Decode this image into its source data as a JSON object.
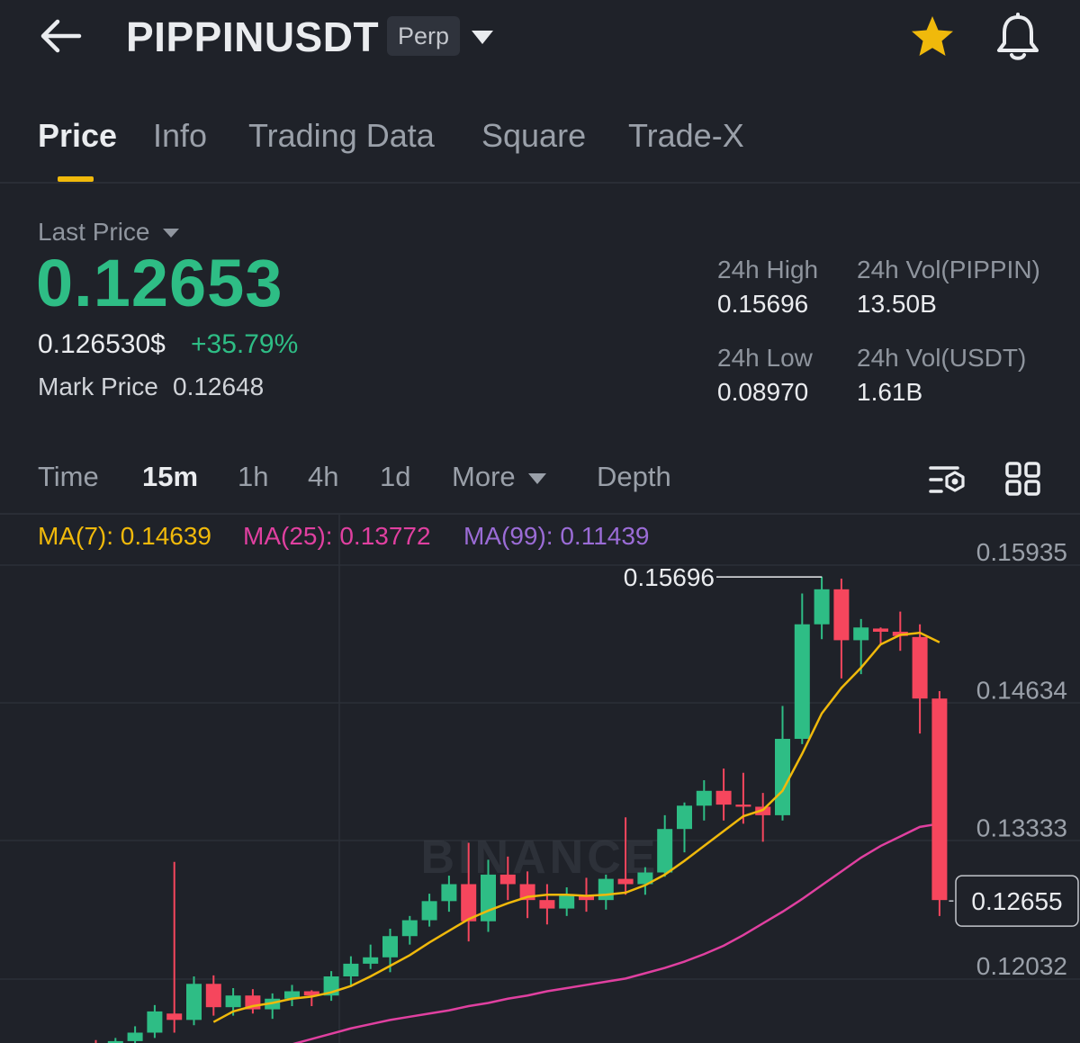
{
  "header": {
    "symbol": "PIPPINUSDT",
    "badge": "Perp",
    "icons": [
      "back-arrow-icon",
      "chevron-down-icon",
      "star-icon",
      "bell-icon"
    ],
    "star_color": "#f0b90b"
  },
  "tabs": [
    {
      "label": "Price",
      "active": true
    },
    {
      "label": "Info",
      "active": false
    },
    {
      "label": "Trading Data",
      "active": false
    },
    {
      "label": "Square",
      "active": false
    },
    {
      "label": "Trade-X",
      "active": false
    }
  ],
  "price": {
    "last_price_label": "Last Price",
    "last_price": "0.12653",
    "usd_price": "0.126530$",
    "change_pct": "+35.79%",
    "mark_label": "Mark Price",
    "mark_value": "0.12648",
    "up_color": "#2ebd85"
  },
  "stats": {
    "high_label": "24h High",
    "high_value": "0.15696",
    "low_label": "24h Low",
    "low_value": "0.08970",
    "vol_base_label": "24h Vol(PIPPIN)",
    "vol_base_value": "13.50B",
    "vol_quote_label": "24h Vol(USDT)",
    "vol_quote_value": "1.61B"
  },
  "intervals": [
    {
      "label": "Time",
      "active": false
    },
    {
      "label": "15m",
      "active": true
    },
    {
      "label": "1h",
      "active": false
    },
    {
      "label": "4h",
      "active": false
    },
    {
      "label": "1d",
      "active": false
    },
    {
      "label": "More",
      "active": false
    },
    {
      "label": "Depth",
      "active": false
    }
  ],
  "toolbar_icons": [
    "chart-settings-icon",
    "grid-layout-icon"
  ],
  "ma": {
    "ma7": "MA(7): 0.14639",
    "ma7_color": "#f0b90b",
    "ma25": "MA(25): 0.13772",
    "ma25_color": "#e040a0",
    "ma99": "MA(99): 0.11439",
    "ma99_color": "#9b6cd6"
  },
  "chart_data": {
    "type": "candlestick",
    "interval": "15m",
    "y_ticks": [
      "0.15935",
      "0.14634",
      "0.13333",
      "0.12032"
    ],
    "y_range": [
      0.1113,
      0.1636
    ],
    "high_marker": "0.15696",
    "current_price_tag": "0.12655",
    "watermark": "BINANCE",
    "up_color": "#2ebd85",
    "down_color": "#f6465d",
    "candles": [
      {
        "o": 0.1127,
        "h": 0.1133,
        "l": 0.112,
        "c": 0.1122
      },
      {
        "o": 0.1123,
        "h": 0.1135,
        "l": 0.1115,
        "c": 0.1132
      },
      {
        "o": 0.1132,
        "h": 0.1146,
        "l": 0.1126,
        "c": 0.114
      },
      {
        "o": 0.114,
        "h": 0.1166,
        "l": 0.1135,
        "c": 0.116
      },
      {
        "o": 0.1158,
        "h": 0.1301,
        "l": 0.114,
        "c": 0.1152
      },
      {
        "o": 0.1152,
        "h": 0.1193,
        "l": 0.1147,
        "c": 0.1186
      },
      {
        "o": 0.1186,
        "h": 0.1194,
        "l": 0.1156,
        "c": 0.1164
      },
      {
        "o": 0.1164,
        "h": 0.1182,
        "l": 0.1156,
        "c": 0.1175
      },
      {
        "o": 0.1175,
        "h": 0.1181,
        "l": 0.1158,
        "c": 0.1162
      },
      {
        "o": 0.1162,
        "h": 0.1177,
        "l": 0.1153,
        "c": 0.1172
      },
      {
        "o": 0.1172,
        "h": 0.1185,
        "l": 0.1165,
        "c": 0.1179
      },
      {
        "o": 0.1179,
        "h": 0.118,
        "l": 0.1165,
        "c": 0.1175
      },
      {
        "o": 0.1175,
        "h": 0.1198,
        "l": 0.117,
        "c": 0.1193
      },
      {
        "o": 0.1193,
        "h": 0.1212,
        "l": 0.1183,
        "c": 0.1205
      },
      {
        "o": 0.1205,
        "h": 0.1223,
        "l": 0.12,
        "c": 0.1211
      },
      {
        "o": 0.1211,
        "h": 0.1238,
        "l": 0.1197,
        "c": 0.1231
      },
      {
        "o": 0.1231,
        "h": 0.125,
        "l": 0.1223,
        "c": 0.1246
      },
      {
        "o": 0.1246,
        "h": 0.1271,
        "l": 0.124,
        "c": 0.1264
      },
      {
        "o": 0.1264,
        "h": 0.1288,
        "l": 0.1254,
        "c": 0.128
      },
      {
        "o": 0.128,
        "h": 0.1319,
        "l": 0.1226,
        "c": 0.1245
      },
      {
        "o": 0.1245,
        "h": 0.1303,
        "l": 0.1235,
        "c": 0.1289
      },
      {
        "o": 0.1289,
        "h": 0.1306,
        "l": 0.1265,
        "c": 0.128
      },
      {
        "o": 0.128,
        "h": 0.1292,
        "l": 0.1248,
        "c": 0.1265
      },
      {
        "o": 0.1265,
        "h": 0.128,
        "l": 0.1242,
        "c": 0.1257
      },
      {
        "o": 0.1257,
        "h": 0.1277,
        "l": 0.125,
        "c": 0.1269
      },
      {
        "o": 0.1269,
        "h": 0.1286,
        "l": 0.1254,
        "c": 0.1265
      },
      {
        "o": 0.1265,
        "h": 0.1289,
        "l": 0.1256,
        "c": 0.1285
      },
      {
        "o": 0.1285,
        "h": 0.1343,
        "l": 0.127,
        "c": 0.128
      },
      {
        "o": 0.128,
        "h": 0.1296,
        "l": 0.127,
        "c": 0.1291
      },
      {
        "o": 0.1291,
        "h": 0.1345,
        "l": 0.1287,
        "c": 0.1332
      },
      {
        "o": 0.1332,
        "h": 0.1357,
        "l": 0.131,
        "c": 0.1354
      },
      {
        "o": 0.1354,
        "h": 0.1378,
        "l": 0.134,
        "c": 0.1368
      },
      {
        "o": 0.1368,
        "h": 0.1389,
        "l": 0.134,
        "c": 0.1355
      },
      {
        "o": 0.1355,
        "h": 0.1385,
        "l": 0.1337,
        "c": 0.1353
      },
      {
        "o": 0.1353,
        "h": 0.1366,
        "l": 0.132,
        "c": 0.1345
      },
      {
        "o": 0.1345,
        "h": 0.1448,
        "l": 0.134,
        "c": 0.1417
      },
      {
        "o": 0.1417,
        "h": 0.1554,
        "l": 0.1412,
        "c": 0.1525
      },
      {
        "o": 0.1525,
        "h": 0.157,
        "l": 0.1511,
        "c": 0.1558
      },
      {
        "o": 0.1558,
        "h": 0.1568,
        "l": 0.1474,
        "c": 0.151
      },
      {
        "o": 0.151,
        "h": 0.153,
        "l": 0.1478,
        "c": 0.1522
      },
      {
        "o": 0.1521,
        "h": 0.1522,
        "l": 0.1506,
        "c": 0.1518
      },
      {
        "o": 0.1518,
        "h": 0.1537,
        "l": 0.15,
        "c": 0.1514
      },
      {
        "o": 0.1513,
        "h": 0.1525,
        "l": 0.1422,
        "c": 0.1455
      },
      {
        "o": 0.1455,
        "h": 0.1462,
        "l": 0.125,
        "c": 0.1265
      }
    ],
    "ma7": [
      0.115,
      0.116,
      0.1165,
      0.1168,
      0.1172,
      0.1174,
      0.1178,
      0.1184,
      0.1193,
      0.1203,
      0.1213,
      0.1225,
      0.1236,
      0.1247,
      0.1255,
      0.1262,
      0.1268,
      0.127,
      0.127,
      0.1269,
      0.127,
      0.1272,
      0.1279,
      0.1289,
      0.1302,
      0.1316,
      0.133,
      0.1344,
      0.135,
      0.1368,
      0.1403,
      0.1441,
      0.1465,
      0.1484,
      0.1506,
      0.1515,
      0.1517,
      0.1508
    ],
    "ma25": [
      0.1111,
      0.1115,
      0.1119,
      0.1124,
      0.1129,
      0.1134,
      0.1139,
      0.1144,
      0.1148,
      0.1152,
      0.1155,
      0.1158,
      0.1161,
      0.1165,
      0.1168,
      0.1172,
      0.1175,
      0.1179,
      0.1182,
      0.1185,
      0.1188,
      0.1191,
      0.1196,
      0.1201,
      0.1207,
      0.1214,
      0.1222,
      0.1232,
      0.1243,
      0.1254,
      0.1266,
      0.1279,
      0.1292,
      0.1305,
      0.1316,
      0.1325,
      0.1334,
      0.1337
    ]
  }
}
